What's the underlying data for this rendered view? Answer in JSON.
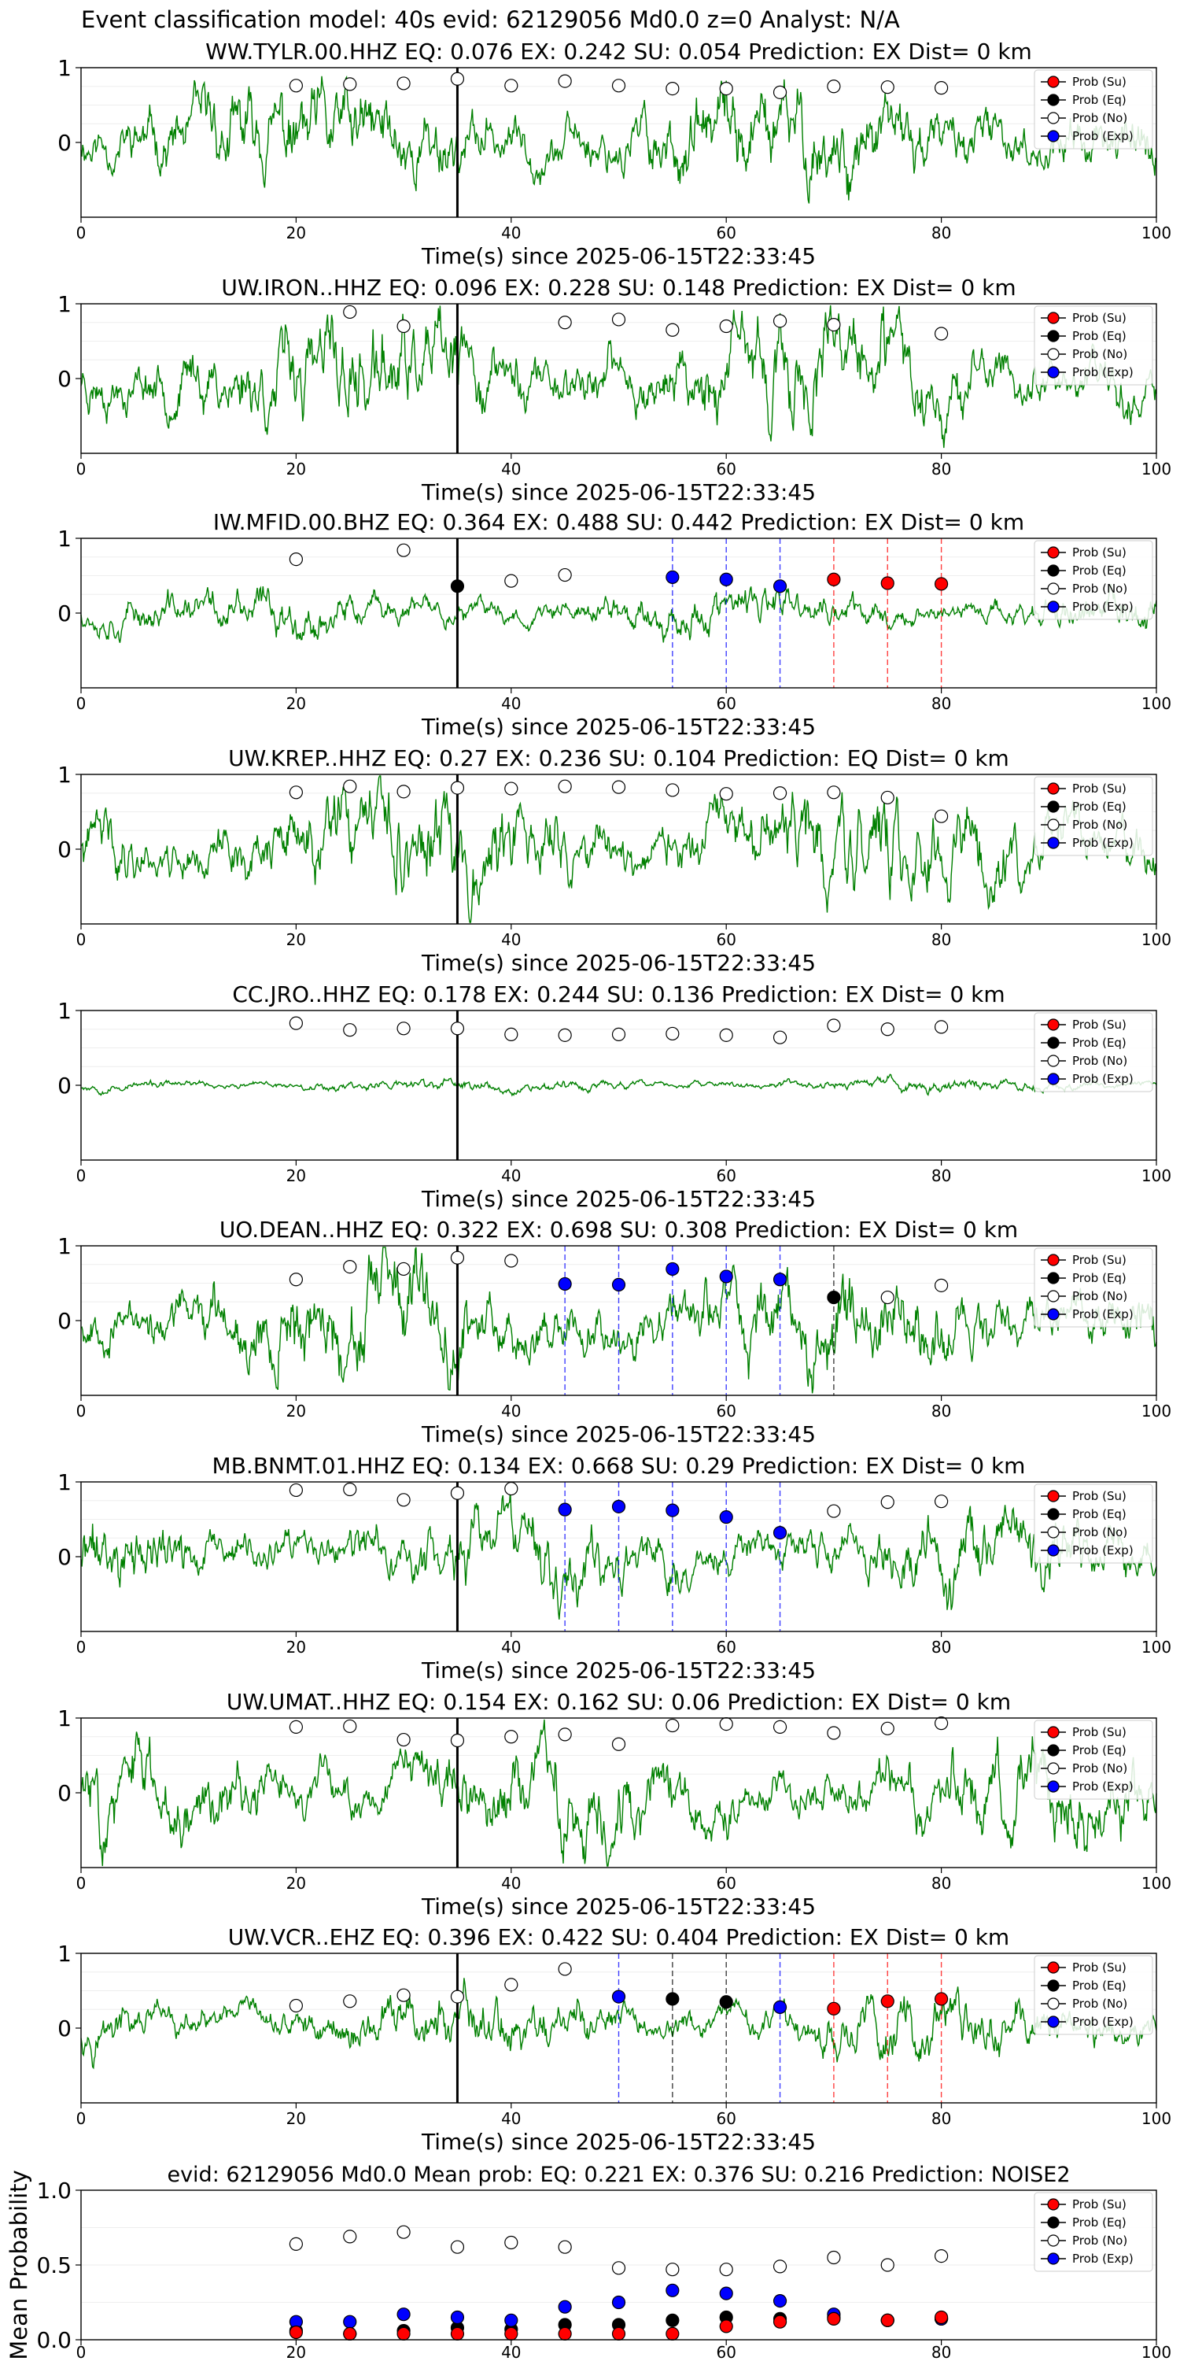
{
  "title": "Event classification model: 40s evid: 62129056 Md0.0 z=0 Analyst: N/A",
  "colors": {
    "waveform": "#008000",
    "su": "#ff0000",
    "eq": "#000000",
    "no": "#ffffff",
    "exp": "#0000ff",
    "pick": "#000000"
  },
  "legend": [
    "Prob (Su)",
    "Prob (Eq)",
    "Prob (No)",
    "Prob (Exp)"
  ],
  "x_ticks": [
    "0",
    "20",
    "40",
    "60",
    "80",
    "100"
  ],
  "y_ticks_trace": [
    "1",
    "0"
  ],
  "y_ticks_mean": [
    "1.0",
    "0.5",
    "0.0"
  ],
  "chart_data": [
    {
      "type": "line",
      "title": "WW.TYLR.00.HHZ   EQ: 0.076  EX: 0.242  SU: 0.054   Prediction: EX    Dist= 0 km",
      "xlabel": "Time(s) since 2025-06-15T22:33:45",
      "xlim": [
        0,
        100
      ],
      "ylim": [
        -1,
        1
      ],
      "amplitude": 0.75,
      "seed": 11,
      "pick_time": 35,
      "no": [
        [
          20,
          0.76
        ],
        [
          25,
          0.78
        ],
        [
          30,
          0.79
        ],
        [
          35,
          0.85
        ],
        [
          40,
          0.76
        ],
        [
          45,
          0.82
        ],
        [
          50,
          0.76
        ],
        [
          55,
          0.72
        ],
        [
          60,
          0.72
        ],
        [
          65,
          0.67
        ],
        [
          70,
          0.75
        ],
        [
          75,
          0.74
        ],
        [
          80,
          0.73
        ]
      ],
      "eq": [],
      "exp": [],
      "su": [],
      "vlines": []
    },
    {
      "type": "line",
      "title": "UW.IRON..HHZ   EQ: 0.096  EX: 0.228  SU: 0.148   Prediction: EX    Dist= 0 km",
      "xlabel": "Time(s) since 2025-06-15T22:33:45",
      "xlim": [
        0,
        100
      ],
      "ylim": [
        -1,
        1
      ],
      "amplitude": 0.8,
      "seed": 23,
      "pick_time": 35,
      "no": [
        [
          25,
          0.89
        ],
        [
          30,
          0.7
        ],
        [
          45,
          0.75
        ],
        [
          50,
          0.79
        ],
        [
          55,
          0.65
        ],
        [
          60,
          0.7
        ],
        [
          65,
          0.77
        ],
        [
          70,
          0.72
        ],
        [
          80,
          0.6
        ]
      ],
      "eq": [],
      "exp": [],
      "su": [],
      "vlines": []
    },
    {
      "type": "line",
      "title": "IW.MFID.00.BHZ   EQ: 0.364  EX: 0.488  SU: 0.442   Prediction: EX    Dist= 0 km",
      "xlabel": "Time(s) since 2025-06-15T22:33:45",
      "xlim": [
        0,
        100
      ],
      "ylim": [
        -1,
        1
      ],
      "amplitude": 0.35,
      "seed": 37,
      "pick_time": 35,
      "no": [
        [
          20,
          0.72
        ],
        [
          30,
          0.84
        ],
        [
          40,
          0.43
        ],
        [
          45,
          0.51
        ]
      ],
      "eq": [
        [
          35,
          0.36
        ]
      ],
      "exp": [
        [
          55,
          0.48
        ],
        [
          60,
          0.45
        ],
        [
          65,
          0.36
        ]
      ],
      "su": [
        [
          70,
          0.45
        ],
        [
          75,
          0.4
        ],
        [
          80,
          0.39
        ]
      ],
      "vlines": [
        {
          "x": 55,
          "c": "exp"
        },
        {
          "x": 60,
          "c": "exp"
        },
        {
          "x": 65,
          "c": "exp"
        },
        {
          "x": 70,
          "c": "su"
        },
        {
          "x": 75,
          "c": "su"
        },
        {
          "x": 80,
          "c": "su"
        }
      ]
    },
    {
      "type": "line",
      "title": "UW.KREP..HHZ   EQ: 0.27  EX: 0.236  SU: 0.104   Prediction: EQ    Dist= 0 km",
      "xlabel": "Time(s) since 2025-06-15T22:33:45",
      "xlim": [
        0,
        100
      ],
      "ylim": [
        -1,
        1
      ],
      "amplitude": 0.8,
      "seed": 41,
      "pick_time": 35,
      "no": [
        [
          20,
          0.76
        ],
        [
          25,
          0.84
        ],
        [
          30,
          0.77
        ],
        [
          35,
          0.82
        ],
        [
          40,
          0.81
        ],
        [
          45,
          0.84
        ],
        [
          50,
          0.83
        ],
        [
          55,
          0.79
        ],
        [
          60,
          0.74
        ],
        [
          65,
          0.75
        ],
        [
          70,
          0.76
        ],
        [
          75,
          0.69
        ],
        [
          80,
          0.44
        ]
      ],
      "eq": [],
      "exp": [],
      "su": [],
      "vlines": []
    },
    {
      "type": "line",
      "title": "CC.JRO..HHZ   EQ: 0.178  EX: 0.244  SU: 0.136   Prediction: EX    Dist= 0 km",
      "xlabel": "Time(s) since 2025-06-15T22:33:45",
      "xlim": [
        0,
        100
      ],
      "ylim": [
        -1,
        1
      ],
      "amplitude": 0.1,
      "seed": 53,
      "pick_time": 35,
      "no": [
        [
          20,
          0.83
        ],
        [
          25,
          0.74
        ],
        [
          30,
          0.76
        ],
        [
          35,
          0.76
        ],
        [
          40,
          0.68
        ],
        [
          45,
          0.67
        ],
        [
          50,
          0.68
        ],
        [
          55,
          0.69
        ],
        [
          60,
          0.67
        ],
        [
          65,
          0.64
        ],
        [
          70,
          0.8
        ],
        [
          75,
          0.75
        ],
        [
          80,
          0.78
        ]
      ],
      "eq": [],
      "exp": [],
      "su": [],
      "vlines": []
    },
    {
      "type": "line",
      "title": "UO.DEAN..HHZ   EQ: 0.322  EX: 0.698  SU: 0.308   Prediction: EX    Dist= 0 km",
      "xlabel": "Time(s) since 2025-06-15T22:33:45",
      "xlim": [
        0,
        100
      ],
      "ylim": [
        -1,
        1
      ],
      "amplitude": 0.75,
      "seed": 67,
      "pick_time": 35,
      "no": [
        [
          20,
          0.55
        ],
        [
          25,
          0.72
        ],
        [
          30,
          0.69
        ],
        [
          35,
          0.84
        ],
        [
          40,
          0.8
        ],
        [
          75,
          0.31
        ],
        [
          80,
          0.47
        ]
      ],
      "eq": [
        [
          70,
          0.31
        ]
      ],
      "exp": [
        [
          45,
          0.49
        ],
        [
          50,
          0.48
        ],
        [
          55,
          0.69
        ],
        [
          60,
          0.59
        ],
        [
          65,
          0.55
        ]
      ],
      "su": [],
      "vlines": [
        {
          "x": 45,
          "c": "exp"
        },
        {
          "x": 50,
          "c": "exp"
        },
        {
          "x": 55,
          "c": "exp"
        },
        {
          "x": 60,
          "c": "exp"
        },
        {
          "x": 65,
          "c": "exp"
        },
        {
          "x": 70,
          "c": "eq"
        }
      ]
    },
    {
      "type": "line",
      "title": "MB.BNMT.01.HHZ   EQ: 0.134  EX: 0.668  SU: 0.29   Prediction: EX    Dist= 0 km",
      "xlabel": "Time(s) since 2025-06-15T22:33:45",
      "xlim": [
        0,
        100
      ],
      "ylim": [
        -1,
        1
      ],
      "amplitude": 0.6,
      "seed": 71,
      "pick_time": 35,
      "no": [
        [
          20,
          0.89
        ],
        [
          25,
          0.9
        ],
        [
          30,
          0.76
        ],
        [
          35,
          0.85
        ],
        [
          40,
          0.91
        ],
        [
          70,
          0.61
        ],
        [
          75,
          0.73
        ],
        [
          80,
          0.74
        ]
      ],
      "eq": [],
      "exp": [
        [
          45,
          0.63
        ],
        [
          50,
          0.67
        ],
        [
          55,
          0.62
        ],
        [
          60,
          0.53
        ],
        [
          65,
          0.32
        ]
      ],
      "su": [],
      "vlines": [
        {
          "x": 45,
          "c": "exp"
        },
        {
          "x": 50,
          "c": "exp"
        },
        {
          "x": 55,
          "c": "exp"
        },
        {
          "x": 60,
          "c": "exp"
        },
        {
          "x": 65,
          "c": "exp"
        }
      ]
    },
    {
      "type": "line",
      "title": "UW.UMAT..HHZ   EQ: 0.154  EX: 0.162  SU: 0.06   Prediction: EX    Dist= 0 km",
      "xlabel": "Time(s) since 2025-06-15T22:33:45",
      "xlim": [
        0,
        100
      ],
      "ylim": [
        -1,
        1
      ],
      "amplitude": 0.7,
      "seed": 83,
      "pick_time": 35,
      "no": [
        [
          20,
          0.88
        ],
        [
          25,
          0.89
        ],
        [
          30,
          0.71
        ],
        [
          35,
          0.7
        ],
        [
          40,
          0.75
        ],
        [
          45,
          0.78
        ],
        [
          50,
          0.65
        ],
        [
          55,
          0.9
        ],
        [
          60,
          0.92
        ],
        [
          65,
          0.88
        ],
        [
          70,
          0.8
        ],
        [
          75,
          0.86
        ],
        [
          80,
          0.93
        ]
      ],
      "eq": [],
      "exp": [],
      "su": [],
      "vlines": []
    },
    {
      "type": "line",
      "title": "UW.VCR..EHZ   EQ: 0.396  EX: 0.422  SU: 0.404   Prediction: EX    Dist= 0 km",
      "xlabel": "Time(s) since 2025-06-15T22:33:45",
      "xlim": [
        0,
        100
      ],
      "ylim": [
        -1,
        1
      ],
      "amplitude": 0.45,
      "seed": 97,
      "pick_time": 35,
      "no": [
        [
          20,
          0.3
        ],
        [
          25,
          0.36
        ],
        [
          30,
          0.44
        ],
        [
          35,
          0.42
        ],
        [
          40,
          0.58
        ],
        [
          45,
          0.79
        ]
      ],
      "eq": [
        [
          55,
          0.39
        ],
        [
          60,
          0.35
        ]
      ],
      "exp": [
        [
          50,
          0.42
        ],
        [
          65,
          0.28
        ]
      ],
      "su": [
        [
          70,
          0.26
        ],
        [
          75,
          0.36
        ],
        [
          80,
          0.39
        ]
      ],
      "vlines": [
        {
          "x": 50,
          "c": "exp"
        },
        {
          "x": 55,
          "c": "eq"
        },
        {
          "x": 60,
          "c": "eq"
        },
        {
          "x": 65,
          "c": "exp"
        },
        {
          "x": 70,
          "c": "su"
        },
        {
          "x": 75,
          "c": "su"
        },
        {
          "x": 80,
          "c": "su"
        }
      ]
    },
    {
      "type": "scatter",
      "title": "evid: 62129056  Md0.0   Mean prob:    EQ: 0.221  EX: 0.376  SU: 0.216   Prediction: NOISE2",
      "ylabel": "Mean Probability",
      "xlim": [
        0,
        100
      ],
      "ylim": [
        0,
        1
      ],
      "no": [
        [
          20,
          0.64
        ],
        [
          25,
          0.69
        ],
        [
          30,
          0.72
        ],
        [
          35,
          0.62
        ],
        [
          40,
          0.65
        ],
        [
          45,
          0.62
        ],
        [
          50,
          0.48
        ],
        [
          55,
          0.47
        ],
        [
          60,
          0.47
        ],
        [
          65,
          0.49
        ],
        [
          70,
          0.55
        ],
        [
          75,
          0.5
        ],
        [
          80,
          0.56
        ]
      ],
      "eq": [
        [
          20,
          0.06
        ],
        [
          25,
          0.04
        ],
        [
          30,
          0.06
        ],
        [
          35,
          0.08
        ],
        [
          40,
          0.07
        ],
        [
          45,
          0.1
        ],
        [
          50,
          0.1
        ],
        [
          55,
          0.13
        ],
        [
          60,
          0.15
        ],
        [
          65,
          0.14
        ],
        [
          70,
          0.15
        ],
        [
          75,
          0.13
        ],
        [
          80,
          0.14
        ]
      ],
      "exp": [
        [
          20,
          0.12
        ],
        [
          25,
          0.12
        ],
        [
          30,
          0.17
        ],
        [
          35,
          0.15
        ],
        [
          40,
          0.13
        ],
        [
          45,
          0.22
        ],
        [
          50,
          0.25
        ],
        [
          55,
          0.33
        ],
        [
          60,
          0.31
        ],
        [
          65,
          0.26
        ],
        [
          70,
          0.17
        ],
        [
          75,
          0.13
        ],
        [
          80,
          0.14
        ]
      ],
      "su": [
        [
          20,
          0.05
        ],
        [
          25,
          0.04
        ],
        [
          30,
          0.04
        ],
        [
          35,
          0.04
        ],
        [
          40,
          0.04
        ],
        [
          45,
          0.04
        ],
        [
          50,
          0.04
        ],
        [
          55,
          0.04
        ],
        [
          60,
          0.09
        ],
        [
          65,
          0.12
        ],
        [
          70,
          0.14
        ],
        [
          75,
          0.13
        ],
        [
          80,
          0.15
        ]
      ]
    }
  ]
}
